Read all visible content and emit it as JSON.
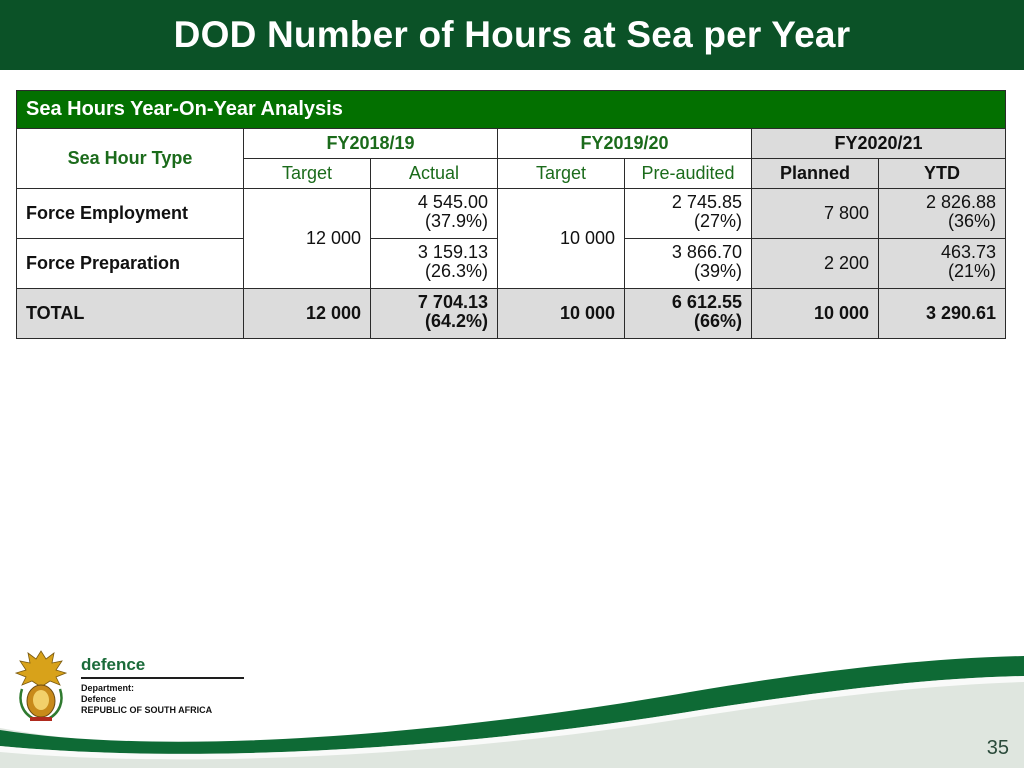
{
  "title": "DOD Number of Hours at Sea per Year",
  "table": {
    "caption": "Sea Hours Year-On-Year Analysis",
    "type_header": "Sea Hour Type",
    "fy": [
      "FY2018/19",
      "FY2019/20",
      "FY2020/21"
    ],
    "sub_headers": [
      "Target",
      "Actual",
      "Target",
      "Pre-audited",
      "Planned",
      "YTD"
    ],
    "rows": [
      {
        "label": "Force Employment",
        "fy1819_actual": [
          "4 545.00",
          "(37.9%)"
        ],
        "fy1920_preaudited": [
          "2 745.85",
          "(27%)"
        ],
        "fy2021_planned": "7 800",
        "fy2021_ytd": [
          "2 826.88",
          "(36%)"
        ]
      },
      {
        "label": "Force Preparation",
        "fy1819_actual": [
          "3 159.13",
          "(26.3%)"
        ],
        "fy1920_preaudited": [
          "3 866.70",
          "(39%)"
        ],
        "fy2021_planned": "2 200",
        "fy2021_ytd": [
          "463.73",
          "(21%)"
        ]
      }
    ],
    "fy1819_target": "12 000",
    "fy1920_target": "10 000",
    "total": {
      "label": "TOTAL",
      "fy1819_target": "12 000",
      "fy1819_actual": [
        "7 704.13",
        "(64.2%)"
      ],
      "fy1920_target": "10 000",
      "fy1920_preaudited": [
        "6 612.55",
        "(66%)"
      ],
      "fy2021_planned": "10 000",
      "fy2021_ytd": "3 290.61"
    }
  },
  "footer": {
    "logo_word": "defence",
    "dept_lines": [
      "Department:",
      "Defence",
      "REPUBLIC OF SOUTH AFRICA"
    ],
    "page_number": "35"
  },
  "colors": {
    "title_bar": "#0b5227",
    "caption_bar": "#037000",
    "header_text_green": "#1b6b1b",
    "grey_fill": "#dcdcdc"
  },
  "icons": {
    "coat_of_arms": "south-africa-coat-of-arms-icon"
  }
}
